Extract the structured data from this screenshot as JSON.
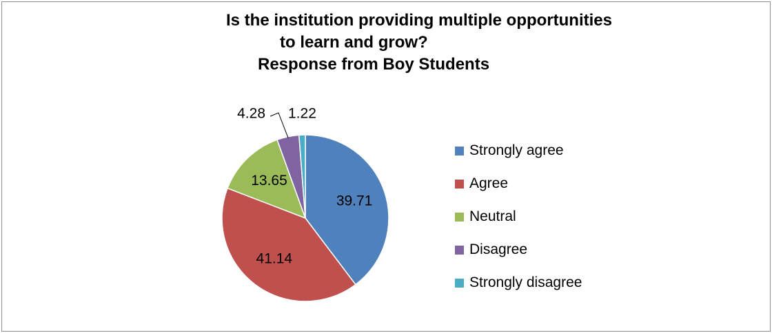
{
  "chart_data": {
    "type": "pie",
    "title_lines": [
      "Is the institution providing multiple opportunities",
      "to learn and grow?",
      "Response from Boy Students"
    ],
    "categories": [
      "Strongly agree",
      "Agree",
      "Neutral",
      "Disagree",
      "Strongly disagree"
    ],
    "values": [
      39.71,
      41.14,
      13.65,
      4.28,
      1.22
    ],
    "data_labels": [
      "39.71",
      "41.14",
      "13.65",
      "4.28",
      "1.22"
    ],
    "colors": [
      "#4f81bd",
      "#c0504d",
      "#9bbb59",
      "#8064a2",
      "#4bacc6"
    ],
    "legend": "right",
    "start_angle": "top, clockwise"
  }
}
